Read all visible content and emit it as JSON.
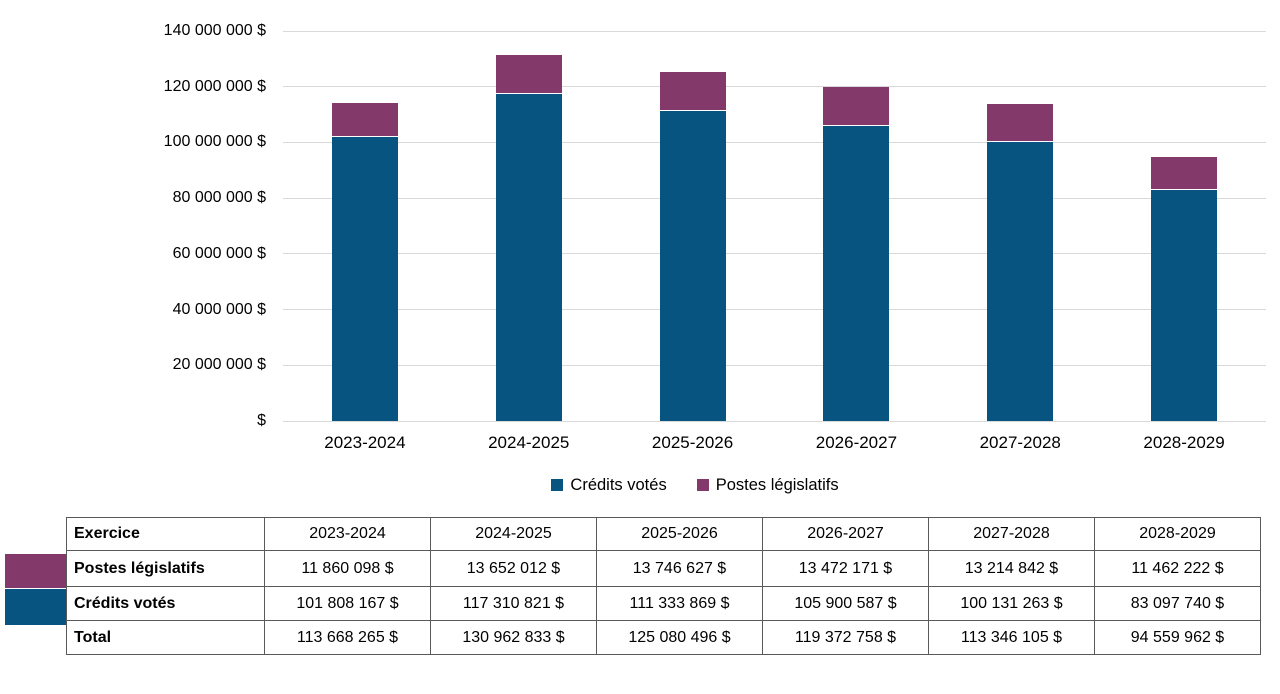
{
  "chart_data": {
    "type": "bar",
    "stacked": true,
    "title": "",
    "xlabel": "",
    "ylabel": "",
    "categories": [
      "2023-2024",
      "2024-2025",
      "2025-2026",
      "2026-2027",
      "2027-2028",
      "2028-2029"
    ],
    "series": [
      {
        "name": "Crédits votés",
        "color": "#085480",
        "values": [
          101808167,
          117310821,
          111333869,
          105900587,
          100131263,
          83097740
        ]
      },
      {
        "name": "Postes législatifs",
        "color": "#833A6B",
        "values": [
          11860098,
          13652012,
          13746627,
          13472171,
          13214842,
          11462222
        ]
      }
    ],
    "totals": [
      113668265,
      130962833,
      125080496,
      119372758,
      113346105,
      94559962
    ],
    "ylim": [
      0,
      140000000
    ],
    "ytick_step": 20000000,
    "ytick_labels": [
      "$",
      "20 000 000 $",
      "40 000 000 $",
      "60 000 000 $",
      "80 000 000 $",
      "100 000 000 $",
      "120 000 000 $",
      "140 000 000 $"
    ],
    "grid": true,
    "gridline_color": "#d9d9d9",
    "legend_position": "bottom"
  },
  "table": {
    "header": [
      "Exercice",
      "2023-2024",
      "2024-2025",
      "2025-2026",
      "2026-2027",
      "2027-2028",
      "2028-2029"
    ],
    "rows": [
      {
        "label": "Postes législatifs",
        "swatch": "#833A6B",
        "values": [
          "11 860 098 $",
          "13 652 012 $",
          "13 746 627 $",
          "13 472 171 $",
          "13 214 842 $",
          "11 462 222 $"
        ]
      },
      {
        "label": "Crédits votés",
        "swatch": "#085480",
        "values": [
          "101 808 167 $",
          "117 310 821 $",
          "111 333 869 $",
          "105 900 587 $",
          "100 131 263 $",
          "83 097 740 $"
        ]
      },
      {
        "label": "Total",
        "swatch": null,
        "values": [
          "113 668 265 $",
          "130 962 833 $",
          "125 080 496 $",
          "119 372 758 $",
          "113 346 105 $",
          "94 559 962 $"
        ]
      }
    ],
    "border_color": "#595959"
  }
}
